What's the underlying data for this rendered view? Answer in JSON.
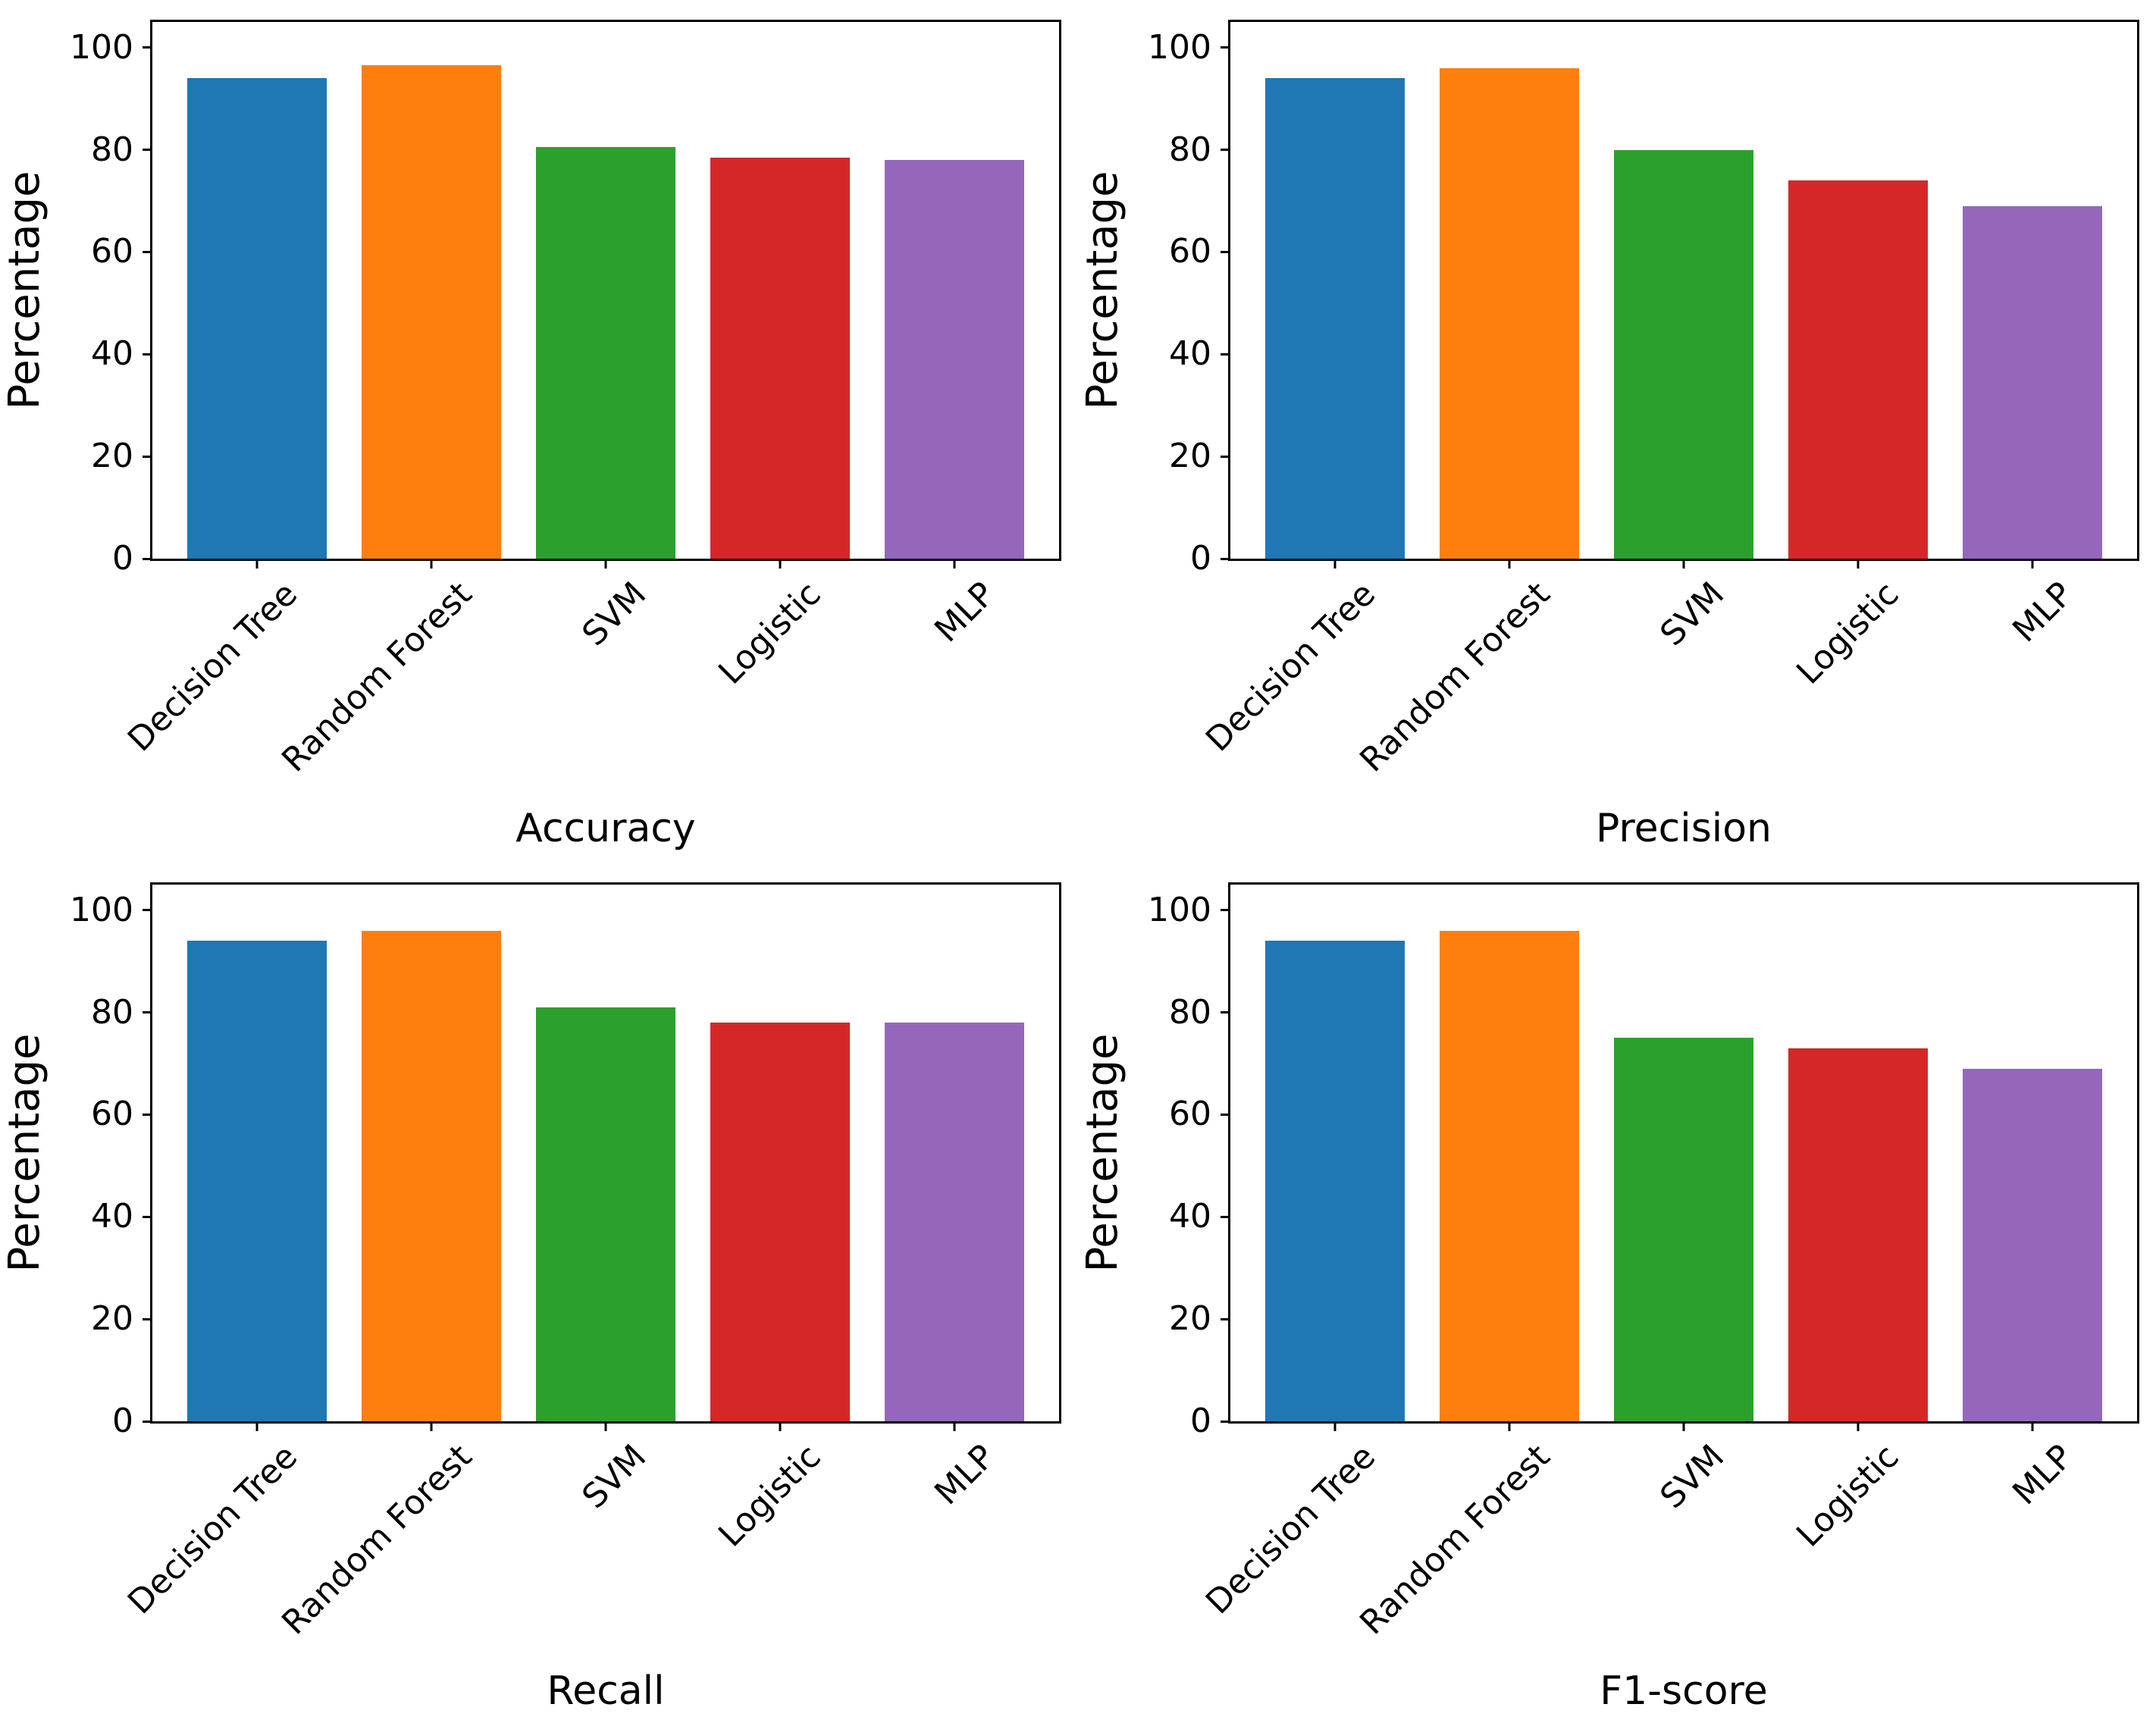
{
  "figure": {
    "background": "#ffffff",
    "axis_color": "#000000",
    "bar_colors": [
      "#1f77b4",
      "#ff7f0e",
      "#2ca02c",
      "#d62728",
      "#9467bd"
    ]
  },
  "chart_data": [
    {
      "type": "bar",
      "position": "top-left",
      "xlabel": "Accuracy",
      "ylabel": "Percentage",
      "categories": [
        "Decision Tree",
        "Random Forest",
        "SVM",
        "Logistic",
        "MLP"
      ],
      "values": [
        94,
        96.5,
        80.5,
        78.5,
        78
      ],
      "yticks": [
        0,
        20,
        40,
        60,
        80,
        100
      ],
      "ylim": [
        0,
        105
      ],
      "xlim": [
        -0.6,
        4.6
      ],
      "bar_width": 0.8,
      "grid": false,
      "legend": false
    },
    {
      "type": "bar",
      "position": "top-right",
      "xlabel": "Precision",
      "ylabel": "Percentage",
      "categories": [
        "Decision Tree",
        "Random Forest",
        "SVM",
        "Logistic",
        "MLP"
      ],
      "values": [
        94,
        96,
        80,
        74,
        69
      ],
      "yticks": [
        0,
        20,
        40,
        60,
        80,
        100
      ],
      "ylim": [
        0,
        105
      ],
      "xlim": [
        -0.6,
        4.6
      ],
      "bar_width": 0.8,
      "grid": false,
      "legend": false
    },
    {
      "type": "bar",
      "position": "bottom-left",
      "xlabel": "Recall",
      "ylabel": "Percentage",
      "categories": [
        "Decision Tree",
        "Random Forest",
        "SVM",
        "Logistic",
        "MLP"
      ],
      "values": [
        94,
        96,
        81,
        78,
        78
      ],
      "yticks": [
        0,
        20,
        40,
        60,
        80,
        100
      ],
      "ylim": [
        0,
        105
      ],
      "xlim": [
        -0.6,
        4.6
      ],
      "bar_width": 0.8,
      "grid": false,
      "legend": false
    },
    {
      "type": "bar",
      "position": "bottom-right",
      "xlabel": "F1-score",
      "ylabel": "Percentage",
      "categories": [
        "Decision Tree",
        "Random Forest",
        "SVM",
        "Logistic",
        "MLP"
      ],
      "values": [
        94,
        96,
        75,
        73,
        69
      ],
      "yticks": [
        0,
        20,
        40,
        60,
        80,
        100
      ],
      "ylim": [
        0,
        105
      ],
      "xlim": [
        -0.6,
        4.6
      ],
      "bar_width": 0.8,
      "grid": false,
      "legend": false
    }
  ]
}
